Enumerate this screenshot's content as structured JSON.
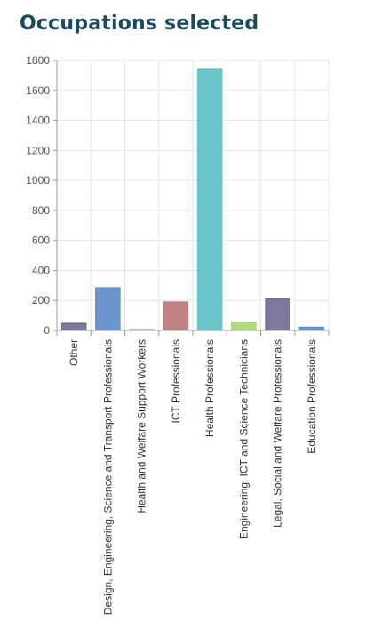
{
  "page": {
    "title": "Occupations selected"
  },
  "colors": {
    "title": "#1a4a5e",
    "grid": "#e6e6e6",
    "axis": "#999999"
  },
  "chart_data": {
    "type": "bar",
    "title": "",
    "xlabel": "",
    "ylabel": "",
    "ylim": [
      0,
      1800
    ],
    "yticks": [
      0,
      200,
      400,
      600,
      800,
      1000,
      1200,
      1400,
      1600,
      1800
    ],
    "ytick_labels": [
      "0",
      "200",
      "400",
      "600",
      "800",
      "1000",
      "1200",
      "1400",
      "1600",
      "1800"
    ],
    "grid": true,
    "legend": "none",
    "categories": [
      "Other",
      "Design, Engineering, Science and Transport Professionals",
      "Health and Welfare Support Workers",
      "ICT Professionals",
      "Health Professionals",
      "Engineering, ICT and Science Technicians",
      "Legal, Social and Welfare Professionals",
      "Education Professionals"
    ],
    "values": [
      48,
      285,
      8,
      190,
      1742,
      55,
      210,
      22
    ],
    "bar_colors": [
      "#6a6a8e",
      "#5b8ac9",
      "#d9a080",
      "#b97474",
      "#5bc0c6",
      "#a6d66a",
      "#6e6a8e",
      "#5b8ac9"
    ]
  }
}
